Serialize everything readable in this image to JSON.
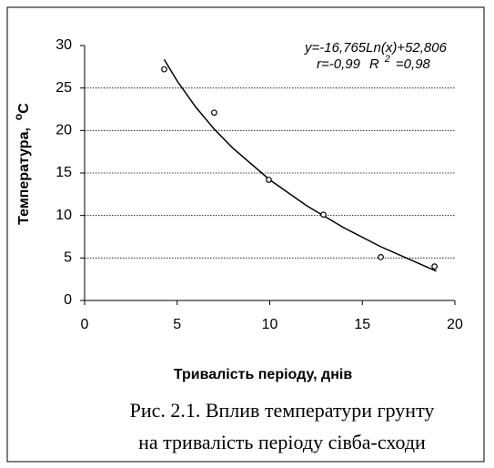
{
  "chart_data": {
    "type": "scatter",
    "xlabel": "Тривалість періоду, днів",
    "ylabel": "Температура,",
    "ylabel_unit": {
      "sup": "o",
      "base": "C"
    },
    "x": [
      4.3,
      7,
      9.95,
      12.9,
      16,
      18.9
    ],
    "values": [
      27.2,
      22.1,
      14.2,
      10.1,
      5.1,
      4.0
    ],
    "trendline": {
      "x": [
        4.3,
        5,
        6,
        7,
        8,
        10,
        12,
        14,
        16,
        19
      ],
      "values": [
        28.35,
        25.82,
        22.77,
        20.18,
        17.94,
        14.2,
        11.14,
        8.56,
        6.32,
        3.45
      ]
    },
    "equation": "y=-16,765Ln(x)+52,806",
    "r_text": "r=-0,99",
    "r2_text": {
      "base": "R",
      "sup": "2",
      "rest": "=0,98"
    },
    "xlim": [
      0,
      20
    ],
    "xticks": [
      0,
      5,
      10,
      15,
      20
    ],
    "ylim": [
      0,
      30
    ],
    "yticks": [
      0,
      5,
      10,
      15,
      20,
      25,
      30
    ],
    "grid": true,
    "caption": [
      "Рис. 2.1.  Вплив температури грунту",
      "на тривалість періоду сівба-сходи"
    ]
  }
}
